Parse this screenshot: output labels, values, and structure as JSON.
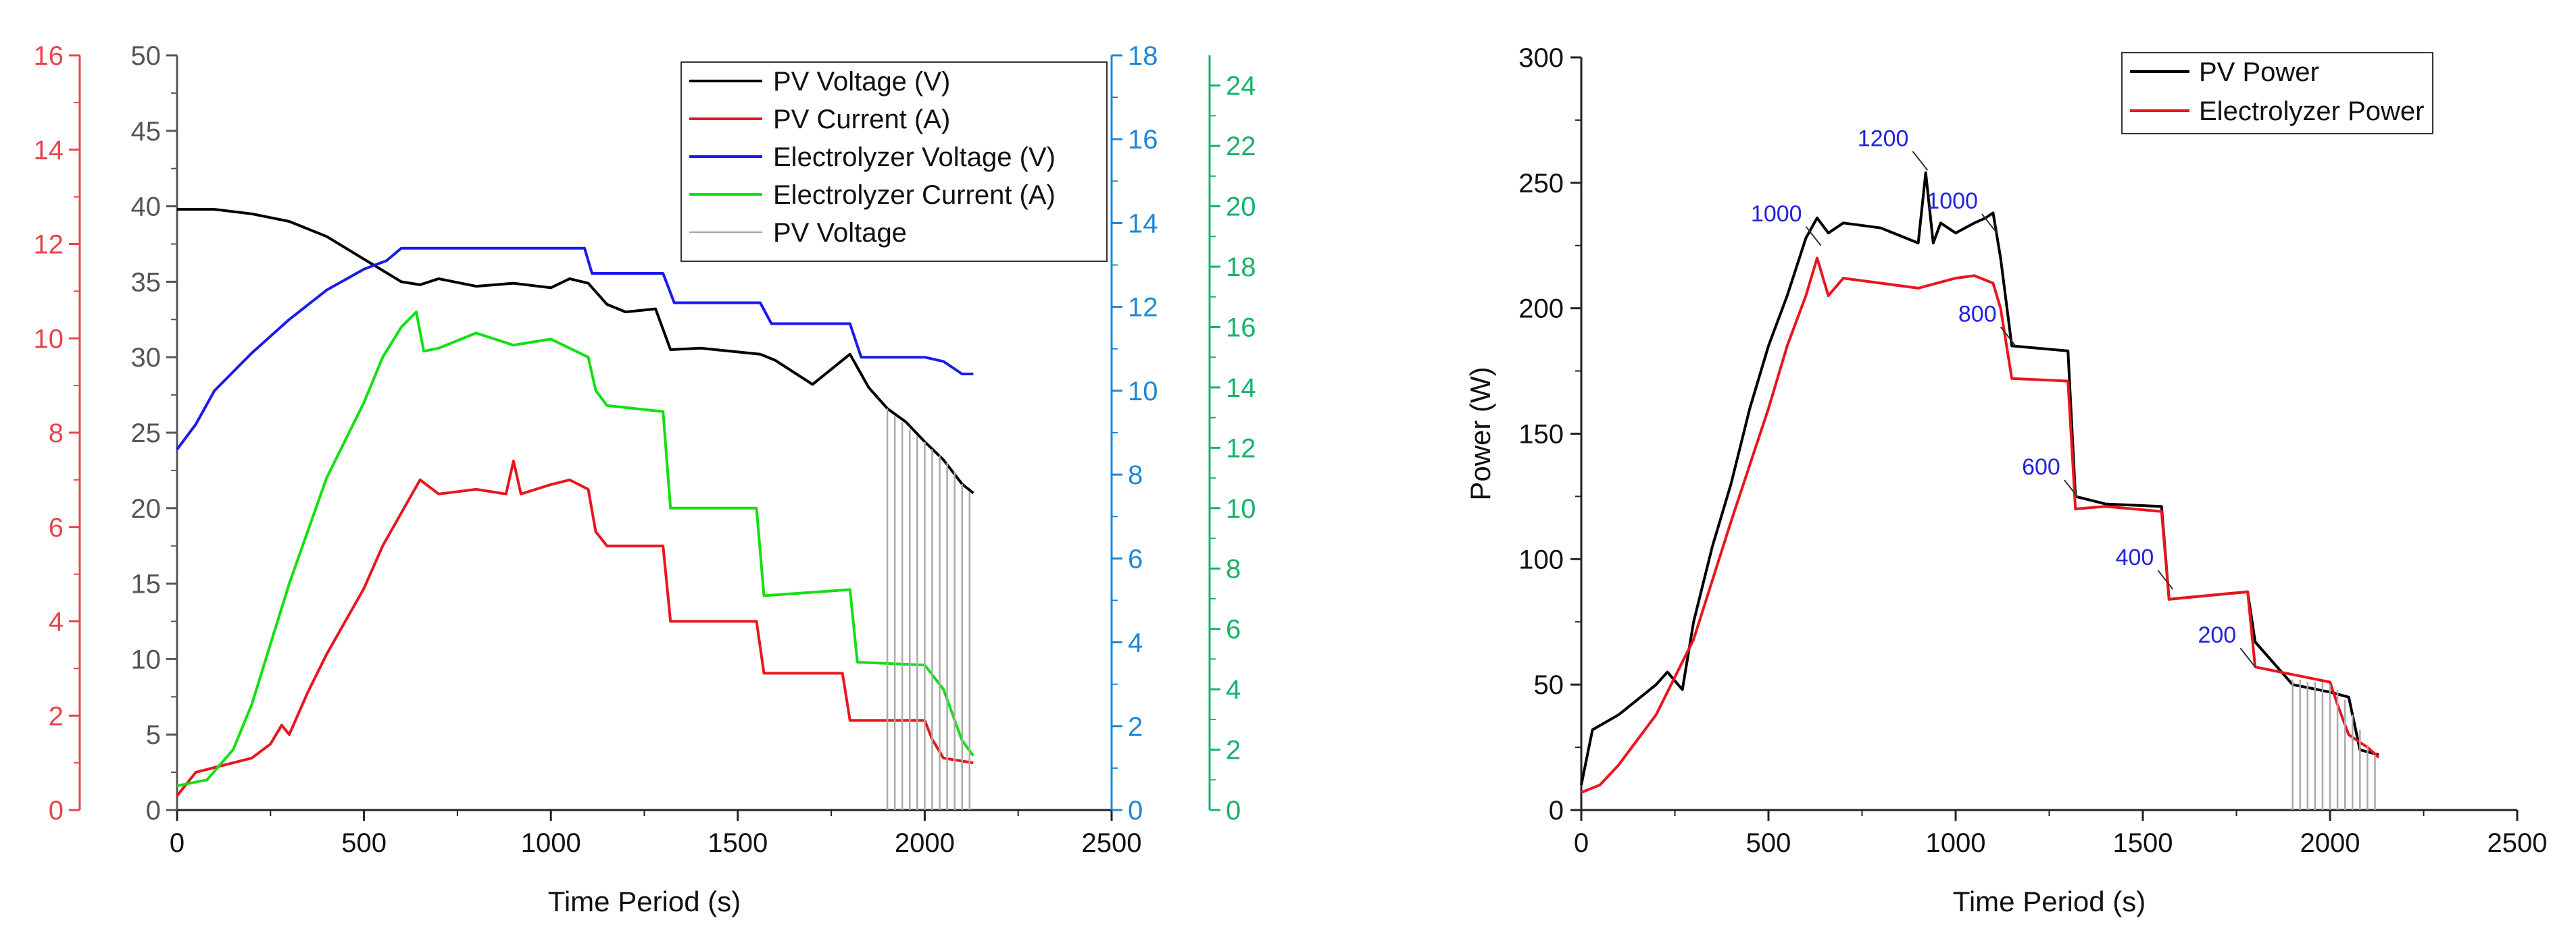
{
  "chart_data": [
    {
      "type": "line",
      "title": "",
      "xlabel": "Time Period (s)",
      "xlim": [
        0,
        2500
      ],
      "xticks": [
        0,
        500,
        1000,
        1500,
        2000,
        2500
      ],
      "axes": [
        {
          "name": "pv_voltage_axis",
          "color": "#555555",
          "ylim": [
            0,
            50
          ],
          "ticks": [
            0,
            5,
            10,
            15,
            20,
            25,
            30,
            35,
            40,
            45,
            50
          ]
        },
        {
          "name": "pv_current_axis",
          "color": "#e8454b",
          "ylim": [
            0,
            16
          ],
          "ticks": [
            0,
            2,
            4,
            6,
            8,
            10,
            12,
            14,
            16
          ]
        },
        {
          "name": "electrolyzer_voltage_axis",
          "color": "#1e88d6",
          "ylim": [
            0,
            18
          ],
          "ticks": [
            0,
            2,
            4,
            6,
            8,
            10,
            12,
            14,
            16,
            18
          ]
        },
        {
          "name": "electrolyzer_current_axis",
          "color": "#16b36b",
          "ylim": [
            0,
            25
          ],
          "ticks": [
            0,
            2,
            4,
            6,
            8,
            10,
            12,
            14,
            16,
            18,
            20,
            22,
            24
          ]
        }
      ],
      "series": [
        {
          "name": "PV Voltage (V)",
          "color": "#000000",
          "axis": 0,
          "x": [
            0,
            100,
            200,
            300,
            400,
            500,
            560,
            600,
            650,
            700,
            800,
            900,
            1000,
            1050,
            1100,
            1150,
            1200,
            1280,
            1320,
            1400,
            1480,
            1560,
            1600,
            1700,
            1750,
            1800,
            1850,
            1900,
            1950,
            2000,
            2050,
            2100,
            2130
          ],
          "y": [
            39.8,
            39.8,
            39.5,
            39,
            38,
            36.5,
            35.6,
            35,
            34.8,
            35.2,
            34.7,
            34.9,
            34.6,
            35.2,
            34.9,
            33.5,
            33,
            33.2,
            30.5,
            30.6,
            30.4,
            30.2,
            29.8,
            28.2,
            29.2,
            30.2,
            28,
            26.6,
            25.7,
            24.4,
            23.2,
            21.6,
            21.0
          ]
        },
        {
          "name": "PV Current (A)",
          "color": "#e8161e",
          "axis": 1,
          "x": [
            0,
            50,
            100,
            200,
            250,
            280,
            300,
            350,
            400,
            500,
            550,
            600,
            650,
            700,
            800,
            880,
            900,
            920,
            1000,
            1050,
            1100,
            1120,
            1150,
            1300,
            1320,
            1550,
            1570,
            1780,
            1800,
            2000,
            2020,
            2050,
            2130
          ],
          "y": [
            0.3,
            0.8,
            0.9,
            1.1,
            1.4,
            1.8,
            1.6,
            2.5,
            3.3,
            4.7,
            5.6,
            6.3,
            7.0,
            6.7,
            6.8,
            6.7,
            7.4,
            6.7,
            6.9,
            7.0,
            6.8,
            5.9,
            5.6,
            5.6,
            4.0,
            4.0,
            2.9,
            2.9,
            1.9,
            1.9,
            1.5,
            1.1,
            1.0
          ]
        },
        {
          "name": "Electrolyzer Voltage (V)",
          "color": "#1a1aee",
          "axis": 2,
          "x": [
            0,
            50,
            100,
            200,
            300,
            400,
            500,
            560,
            600,
            1000,
            1090,
            1110,
            1300,
            1330,
            1560,
            1590,
            1800,
            1830,
            2000,
            2050,
            2100,
            2130
          ],
          "y": [
            8.6,
            9.2,
            10.0,
            10.9,
            11.7,
            12.4,
            12.9,
            13.1,
            13.4,
            13.4,
            13.4,
            12.8,
            12.8,
            12.1,
            12.1,
            11.6,
            11.6,
            10.8,
            10.8,
            10.7,
            10.4,
            10.4
          ]
        },
        {
          "name": "Electrolyzer Current (A)",
          "color": "#12e012",
          "axis": 3,
          "x": [
            0,
            80,
            150,
            200,
            300,
            400,
            500,
            550,
            600,
            640,
            660,
            700,
            800,
            900,
            1000,
            1050,
            1100,
            1120,
            1150,
            1300,
            1320,
            1550,
            1570,
            1800,
            1820,
            2000,
            2050,
            2100,
            2130
          ],
          "y": [
            0.8,
            1.0,
            2.0,
            3.5,
            7.5,
            11.0,
            13.5,
            15.0,
            16.0,
            16.5,
            15.2,
            15.3,
            15.8,
            15.4,
            15.6,
            15.3,
            15.0,
            13.9,
            13.4,
            13.2,
            10.0,
            10.0,
            7.1,
            7.3,
            4.9,
            4.8,
            4.0,
            2.3,
            1.8
          ]
        },
        {
          "name": "PV Voltage",
          "color": "#aaaaaa",
          "axis": 0,
          "style": "vertical-hatch",
          "x": [
            1900,
            1920,
            1940,
            1960,
            1980,
            2000,
            2020,
            2040,
            2060,
            2080,
            2100,
            2120
          ],
          "y": [
            26.6,
            26.1,
            25.7,
            25.2,
            24.8,
            24.4,
            23.9,
            23.5,
            23.0,
            22.4,
            21.6,
            21.1
          ]
        }
      ],
      "legend": [
        "PV Voltage (V)",
        "PV Current (A)",
        "Electrolyzer Voltage (V)",
        "Electrolyzer Current (A)",
        "PV Voltage"
      ],
      "legend_position": "top-right"
    },
    {
      "type": "line",
      "title": "",
      "xlabel": "Time Period (s)",
      "ylabel": "Power (W)",
      "xlim": [
        0,
        2500
      ],
      "ylim": [
        0,
        300
      ],
      "xticks": [
        0,
        500,
        1000,
        1500,
        2000,
        2500
      ],
      "yticks": [
        0,
        50,
        100,
        150,
        200,
        250,
        300
      ],
      "series": [
        {
          "name": "PV Power",
          "color": "#000000",
          "x": [
            0,
            30,
            100,
            200,
            230,
            270,
            300,
            350,
            400,
            450,
            500,
            550,
            600,
            630,
            660,
            700,
            800,
            900,
            920,
            940,
            960,
            1000,
            1050,
            1080,
            1100,
            1120,
            1150,
            1300,
            1320,
            1400,
            1550,
            1570,
            1780,
            1800,
            1900,
            2000,
            2050,
            2080,
            2130
          ],
          "y": [
            10,
            32,
            38,
            50,
            55,
            48,
            75,
            105,
            130,
            160,
            185,
            205,
            228,
            236,
            230,
            234,
            232,
            226,
            254,
            226,
            234,
            230,
            234,
            236,
            238,
            220,
            185,
            183,
            125,
            122,
            121,
            84,
            87,
            67,
            50,
            47,
            45,
            24,
            22
          ]
        },
        {
          "name": "Electrolyzer Power",
          "color": "#e8161e",
          "x": [
            0,
            50,
            100,
            200,
            300,
            400,
            500,
            550,
            600,
            630,
            660,
            700,
            800,
            900,
            1000,
            1050,
            1100,
            1120,
            1150,
            1300,
            1320,
            1400,
            1550,
            1570,
            1780,
            1800,
            2000,
            2020,
            2050,
            2100,
            2130
          ],
          "y": [
            7,
            10,
            18,
            38,
            68,
            115,
            160,
            185,
            205,
            220,
            205,
            212,
            210,
            208,
            212,
            213,
            210,
            200,
            172,
            171,
            120,
            121,
            119,
            84,
            87,
            57,
            51,
            42,
            30,
            25,
            21
          ]
        },
        {
          "name": "hatch",
          "color": "#aaaaaa",
          "style": "vertical-hatch",
          "x": [
            1900,
            1920,
            1940,
            1960,
            1980,
            2000,
            2020,
            2040,
            2060,
            2080,
            2100,
            2120
          ],
          "y": [
            52,
            52,
            51,
            51,
            51,
            50,
            48,
            44,
            38,
            32,
            26,
            22
          ]
        }
      ],
      "annotations": [
        {
          "text": "1000",
          "x": 640,
          "y": 225
        },
        {
          "text": "1200",
          "x": 925,
          "y": 255
        },
        {
          "text": "1000",
          "x": 1110,
          "y": 230
        },
        {
          "text": "800",
          "x": 1160,
          "y": 185
        },
        {
          "text": "600",
          "x": 1330,
          "y": 124
        },
        {
          "text": "400",
          "x": 1580,
          "y": 88
        },
        {
          "text": "200",
          "x": 1800,
          "y": 57
        }
      ],
      "legend": [
        "PV Power",
        "Electrolyzer Power"
      ],
      "legend_position": "top-right"
    }
  ]
}
